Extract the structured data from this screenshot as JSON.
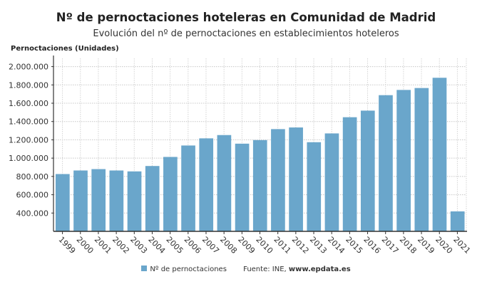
{
  "chart_data": {
    "type": "bar",
    "title": "Nº de pernoctaciones hoteleras en Comunidad de Madrid",
    "subtitle": "Evolución del nº de pernoctaciones en establecimientos hoteleros",
    "ylabel": "Pernoctaciones (Unidades)",
    "xlabel": "",
    "ylim": [
      200000,
      2090000
    ],
    "yticks": [
      400000,
      600000,
      800000,
      1000000,
      1200000,
      1400000,
      1600000,
      1800000,
      2000000
    ],
    "ytick_labels": [
      "400.000",
      "600.000",
      "800.000",
      "1.000.000",
      "1.200.000",
      "1.400.000",
      "1.600.000",
      "1.800.000",
      "2.000.000"
    ],
    "grid": true,
    "categories": [
      "1999",
      "2000",
      "2001",
      "2002",
      "2003",
      "2004",
      "2005",
      "2006",
      "2007",
      "2008",
      "2009",
      "2010",
      "2011",
      "2012",
      "2013",
      "2014",
      "2015",
      "2016",
      "2017",
      "2018",
      "2019",
      "2020",
      "2021"
    ],
    "series": [
      {
        "name": "Nº de pernoctaciones",
        "color": "#6aa6cb",
        "values": [
          826000,
          865000,
          880000,
          865000,
          855000,
          914000,
          1013000,
          1138000,
          1216000,
          1252000,
          1158000,
          1197000,
          1317000,
          1335000,
          1174000,
          1270000,
          1447000,
          1519000,
          1688000,
          1745000,
          1766000,
          1878000,
          418000
        ]
      }
    ],
    "legend_placement": "bottom",
    "source_label": "Fuente: INE, ",
    "source_site": "www.epdata.es"
  }
}
